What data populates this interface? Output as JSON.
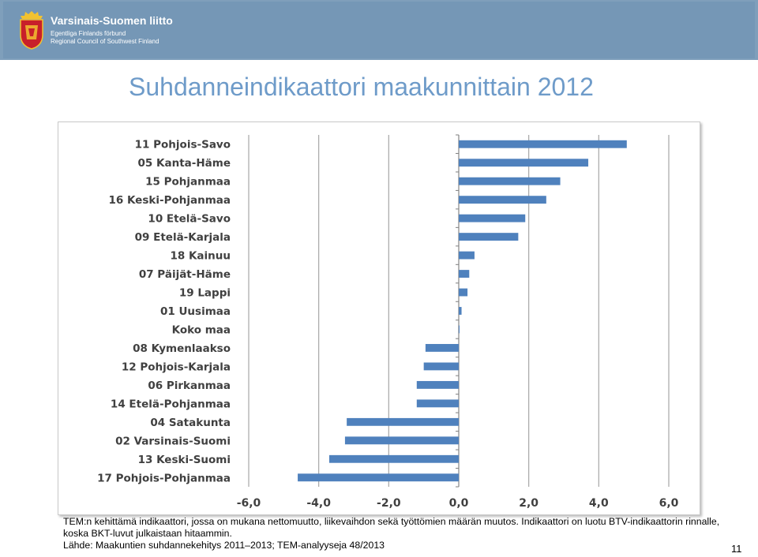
{
  "header": {
    "org_name": "Varsinais-Suomen liitto",
    "org_name_sv": "Egentliga Finlands förbund",
    "org_name_en": "Regional Council of Southwest Finland",
    "bg_color": "#7597b6"
  },
  "page": {
    "title": "Suhdanneindikaattori maakunnittain 2012",
    "note1": "TEM:n kehittämä indikaattori, jossa on mukana nettomuutto, liikevaihdon sekä työttömien määrän muutos.  Indikaattori on luotu BTV-indikaattorin rinnalle, koska BKT-luvut julkaistaan hitaammin.",
    "source": "Lähde: Maakuntien suhdannekehitys 2011–2013; TEM-analyyseja 48/2013",
    "page_number": "11"
  },
  "chart_data": {
    "type": "bar",
    "orientation": "horizontal",
    "categories": [
      "11 Pohjois-Savo",
      "05 Kanta-Häme",
      "15 Pohjanmaa",
      "16 Keski-Pohjanmaa",
      "10 Etelä-Savo",
      "09 Etelä-Karjala",
      "18 Kainuu",
      "07 Päijät-Häme",
      "19 Lappi",
      "01 Uusimaa",
      "Koko maa",
      "08 Kymenlaakso",
      "12 Pohjois-Karjala",
      "06 Pirkanmaa",
      "14 Etelä-Pohjanmaa",
      "04 Satakunta",
      "02 Varsinais-Suomi",
      "13 Keski-Suomi",
      "17 Pohjois-Pohjanmaa"
    ],
    "values": [
      4.8,
      3.7,
      2.9,
      2.5,
      1.9,
      1.7,
      0.45,
      0.3,
      0.25,
      0.08,
      0.02,
      -0.95,
      -1.0,
      -1.2,
      -1.2,
      -3.2,
      -3.25,
      -3.7,
      -4.6
    ],
    "xlim": [
      -6.0,
      6.0
    ],
    "xticks": [
      "-6,0",
      "-4,0",
      "-2,0",
      "0,0",
      "2,0",
      "4,0",
      "6,0"
    ],
    "xtick_values": [
      -6,
      -4,
      -2,
      0,
      2,
      4,
      6
    ],
    "grid": true,
    "bar_color": "#4f81bd"
  }
}
